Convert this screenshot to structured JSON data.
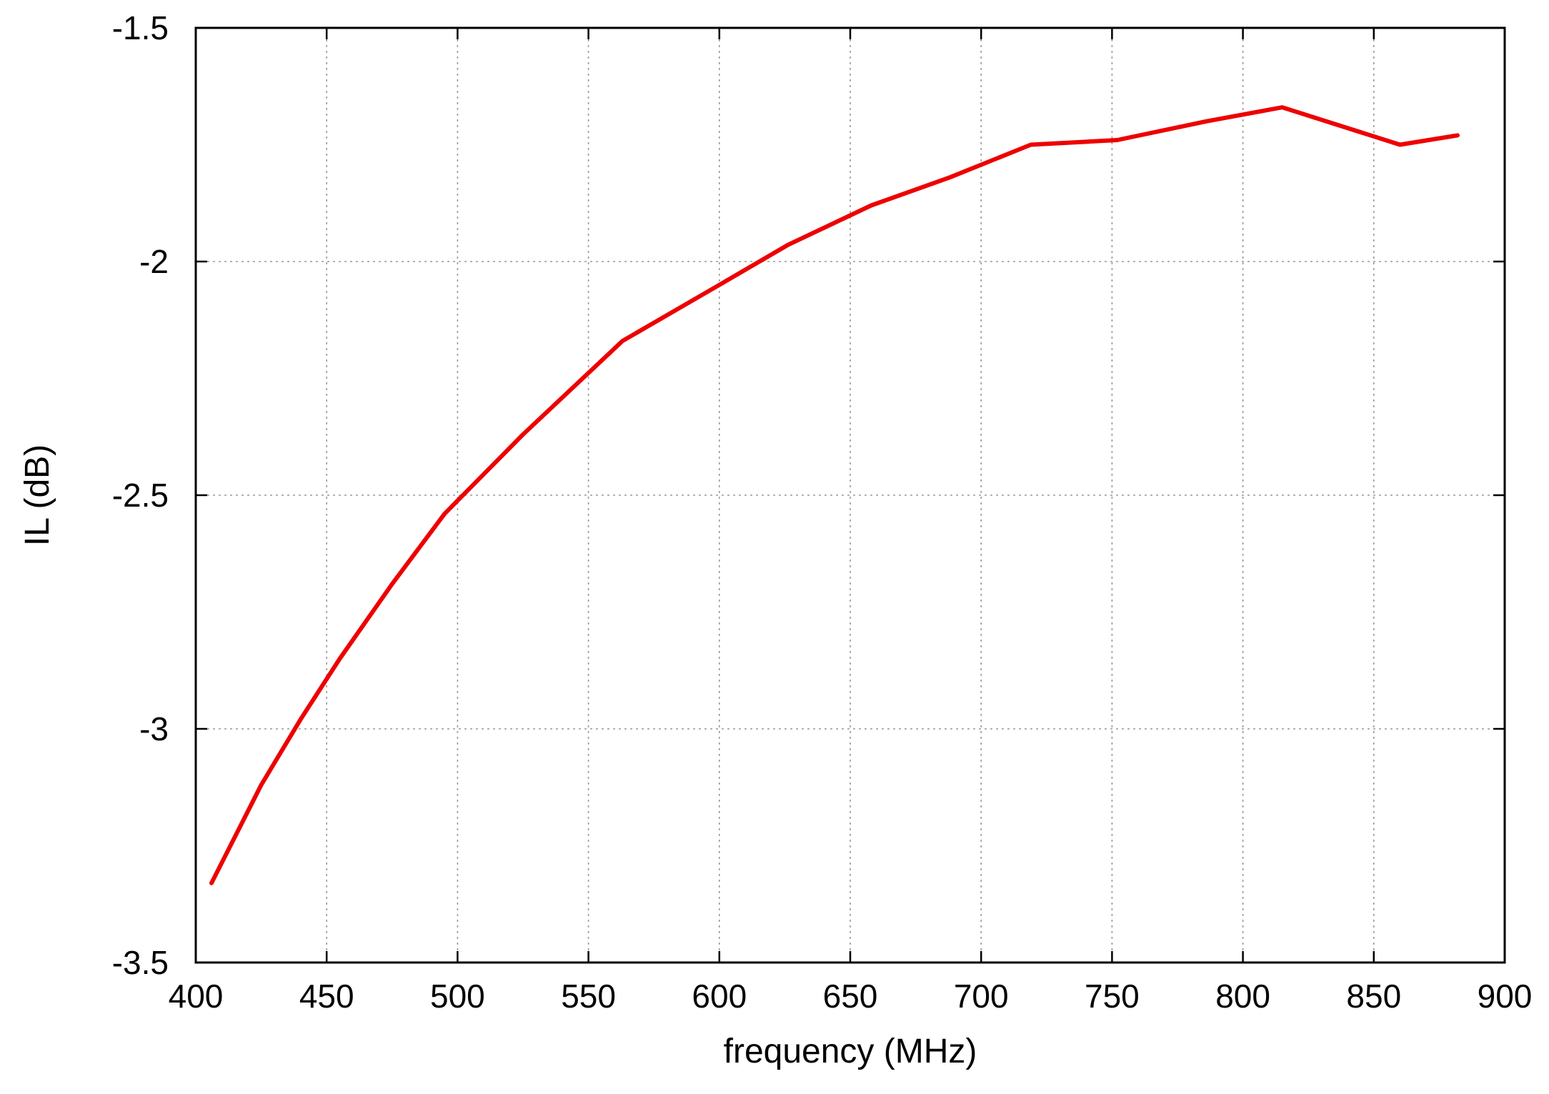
{
  "chart_data": {
    "type": "line",
    "title": "",
    "xlabel": "frequency  (MHz)",
    "ylabel": "IL (dB)",
    "xlim": [
      400,
      900
    ],
    "ylim": [
      -3.5,
      -1.5
    ],
    "xticks": [
      400,
      450,
      500,
      550,
      600,
      650,
      700,
      750,
      800,
      850,
      900
    ],
    "yticks": [
      -3.5,
      -3,
      -2.5,
      -2,
      -1.5
    ],
    "xtick_labels": [
      "400",
      "450",
      "500",
      "550",
      "600",
      "650",
      "700",
      "750",
      "800",
      "850",
      "900"
    ],
    "ytick_labels": [
      "-3.5",
      "-3",
      "-2.5",
      "-2",
      "-1.5"
    ],
    "grid": true,
    "series": [
      {
        "color": "#ee0000",
        "x": [
          406,
          425,
          440,
          455,
          475,
          495,
          525,
          563,
          600,
          626,
          658,
          688,
          719,
          752,
          786,
          815,
          860,
          882
        ],
        "y": [
          -3.33,
          -3.12,
          -2.98,
          -2.85,
          -2.69,
          -2.54,
          -2.37,
          -2.17,
          -2.05,
          -1.965,
          -1.88,
          -1.82,
          -1.75,
          -1.74,
          -1.7,
          -1.67,
          -1.75,
          -1.73
        ]
      }
    ]
  }
}
